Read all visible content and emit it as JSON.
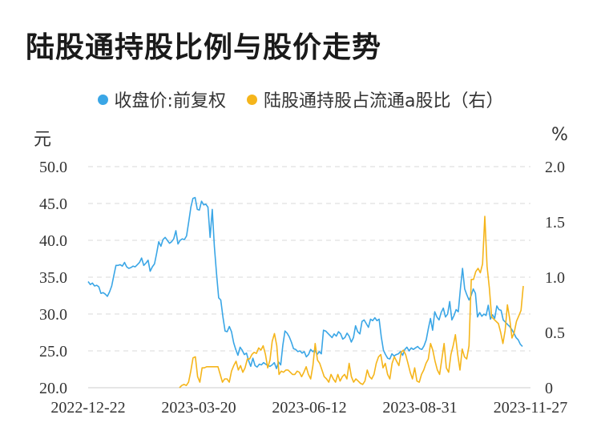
{
  "title": "陆股通持股比例与股价走势",
  "colors": {
    "price": "#3aa6e6",
    "ratio": "#f5b51b",
    "grid": "#d9d9d9"
  },
  "chart_data": {
    "type": "line",
    "title": "陆股通持股比例与股价走势",
    "legend_position": "top-center",
    "grid": "horizontal-dashed",
    "y_left": {
      "unit": "元",
      "ylim": [
        20,
        50
      ],
      "ticks": [
        "50.0",
        "45.0",
        "40.0",
        "35.0",
        "30.0",
        "25.0",
        "20.0"
      ]
    },
    "y_right": {
      "unit": "%",
      "ylim": [
        0,
        2
      ],
      "ticks": [
        "2.0",
        "1.5",
        "1.0",
        "0.5",
        "0"
      ]
    },
    "x_ticks": [
      "2022-12-22",
      "2023-03-20",
      "2023-06-12",
      "2023-08-31",
      "2023-11-27"
    ],
    "series": [
      {
        "name": "收盘价:前复权",
        "axis": "left",
        "values": [
          34.4,
          34.0,
          34.2,
          33.8,
          33.9,
          33.7,
          32.8,
          32.9,
          32.7,
          32.4,
          33.0,
          33.8,
          35.2,
          36.6,
          36.6,
          36.7,
          36.5,
          37.0,
          36.4,
          36.2,
          36.3,
          36.5,
          36.4,
          36.7,
          37.0,
          37.6,
          36.6,
          36.9,
          37.3,
          35.8,
          36.4,
          36.8,
          38.2,
          39.8,
          39.2,
          40.1,
          40.4,
          40.0,
          39.6,
          39.8,
          40.2,
          41.3,
          39.5,
          40.0,
          40.2,
          40.1,
          40.6,
          42.5,
          44.5,
          45.7,
          45.8,
          44.2,
          44.1,
          45.3,
          44.8,
          44.9,
          44.5,
          40.4,
          44.2,
          39.2,
          35.5,
          32.2,
          31.9,
          29.6,
          27.7,
          27.6,
          28.3,
          27.6,
          26.1,
          25.2,
          24.4,
          25.5,
          25.1,
          24.5,
          24.7,
          23.7,
          22.9,
          24.0,
          23.0,
          22.8,
          23.2,
          23.1,
          23.4,
          23.2,
          23.0,
          22.9,
          23.1,
          23.4,
          22.6,
          23.5,
          23.1,
          25.8,
          27.7,
          27.4,
          26.9,
          26.2,
          25.3,
          25.2,
          24.9,
          25.0,
          24.7,
          24.9,
          24.2,
          24.5,
          25.2,
          24.9,
          25.1,
          24.5,
          24.9,
          24.6,
          27.8,
          27.7,
          27.4,
          27.1,
          26.8,
          27.3,
          27.0,
          27.6,
          27.3,
          26.6,
          26.8,
          27.4,
          27.0,
          26.2,
          26.8,
          28.4,
          27.6,
          27.3,
          29.0,
          29.2,
          28.7,
          28.2,
          29.3,
          29.1,
          29.5,
          29.1,
          29.3,
          26.9,
          25.1,
          24.5,
          24.0,
          23.9,
          24.6,
          24.3,
          24.5,
          24.6,
          24.9,
          24.4,
          25.2,
          25.5,
          25.0,
          25.4,
          25.2,
          25.4,
          25.6,
          25.3,
          25.2,
          25.7,
          26.5,
          28.0,
          29.4,
          27.8,
          30.3,
          29.6,
          29.2,
          30.2,
          30.8,
          29.6,
          30.0,
          31.7,
          29.2,
          29.8,
          30.6,
          30.3,
          33.5,
          36.2,
          33.4,
          32.6,
          31.9,
          32.5,
          33.4,
          32.8,
          29.6,
          30.2,
          29.7,
          30.0,
          29.8,
          31.2,
          29.3,
          29.9,
          29.4,
          31.1,
          30.6,
          30.5,
          29.2,
          28.9,
          28.6,
          28.3,
          27.9,
          27.4,
          26.8,
          26.5,
          25.9,
          25.6
        ]
      },
      {
        "name": "陆股通持股占流通a股比（右）",
        "axis": "right",
        "values": [
          0.0,
          0.02,
          0.03,
          0.02,
          0.05,
          0.15,
          0.27,
          0.28,
          0.1,
          0.05,
          0.18,
          0.18,
          0.19,
          0.19,
          0.19,
          0.19,
          0.19,
          0.19,
          0.12,
          0.05,
          0.08,
          0.08,
          0.05,
          0.15,
          0.2,
          0.24,
          0.16,
          0.2,
          0.14,
          0.18,
          0.26,
          0.26,
          0.3,
          0.32,
          0.31,
          0.36,
          0.34,
          0.38,
          0.3,
          0.18,
          0.25,
          0.42,
          0.49,
          0.38,
          0.12,
          0.15,
          0.14,
          0.16,
          0.16,
          0.14,
          0.12,
          0.12,
          0.15,
          0.14,
          0.1,
          0.14,
          0.19,
          0.12,
          0.08,
          0.2,
          0.4,
          0.25,
          0.22,
          0.16,
          0.1,
          0.08,
          0.05,
          0.12,
          0.08,
          0.05,
          0.12,
          0.06,
          0.1,
          0.12,
          0.08,
          0.22,
          0.1,
          0.05,
          0.08,
          0.06,
          0.04,
          0.03,
          0.06,
          0.16,
          0.1,
          0.08,
          0.12,
          0.22,
          0.28,
          0.3,
          0.18,
          0.22,
          0.12,
          0.08,
          0.22,
          0.28,
          0.24,
          0.2,
          0.32,
          0.34,
          0.3,
          0.22,
          0.14,
          0.08,
          0.18,
          0.06,
          0.05,
          0.12,
          0.16,
          0.22,
          0.26,
          0.4,
          0.34,
          0.24,
          0.16,
          0.12,
          0.26,
          0.4,
          0.18,
          0.14,
          0.3,
          0.38,
          0.48,
          0.3,
          0.16,
          0.35,
          0.28,
          0.26,
          0.38,
          0.98,
          0.98,
          1.05,
          1.08,
          1.04,
          1.12,
          1.55,
          1.1,
          0.9,
          0.64,
          0.62,
          0.6,
          0.58,
          0.5,
          0.4,
          0.52,
          0.75,
          0.62,
          0.45,
          0.5,
          0.6,
          0.65,
          0.7,
          0.92
        ]
      }
    ]
  }
}
